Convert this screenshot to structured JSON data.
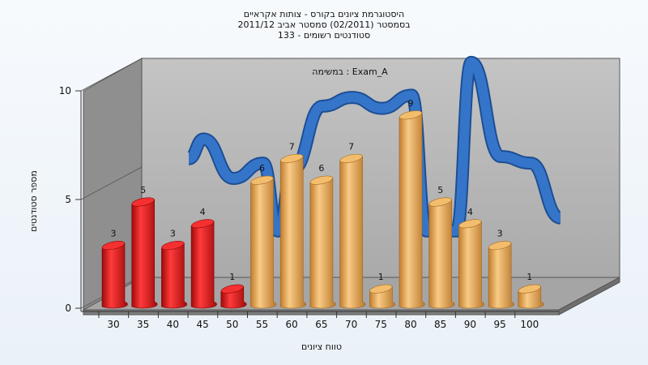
{
  "chart_data": {
    "type": "bar",
    "title": [
      "היסטוגרמת ציונים בקורס - צותות אקראיים",
      "בסמסטר  (02/2011)  סמסטר אביב 2011/12",
      "סטודנטים רשומים - 133"
    ],
    "panel_label": "במשימה : Exam_A",
    "xlabel": "טווח ציונים",
    "ylabel": "מספר סטודנטים",
    "categories": [
      "30",
      "35",
      "40",
      "45",
      "50",
      "55",
      "60",
      "65",
      "70",
      "75",
      "80",
      "85",
      "90",
      "95",
      "100"
    ],
    "values": [
      3,
      5,
      3,
      4,
      1,
      6,
      7,
      6,
      7,
      1,
      9,
      5,
      4,
      3,
      1
    ],
    "bar_groups": [
      "fail",
      "fail",
      "fail",
      "fail",
      "fail",
      "pass",
      "pass",
      "pass",
      "pass",
      "pass",
      "pass",
      "pass",
      "pass",
      "pass",
      "pass"
    ],
    "y_ticks": [
      "0",
      "5",
      "10"
    ],
    "ylim": [
      0,
      10
    ],
    "trend_line": [
      {
        "x": 37.5,
        "y": 4.9
      },
      {
        "x": 40,
        "y": 5.8
      },
      {
        "x": 45,
        "y": 4.0
      },
      {
        "x": 50,
        "y": 4.7
      },
      {
        "x": 52.5,
        "y": 1.6
      },
      {
        "x": 55,
        "y": 4.4
      },
      {
        "x": 60,
        "y": 7.3
      },
      {
        "x": 65,
        "y": 7.7
      },
      {
        "x": 70,
        "y": 7.2
      },
      {
        "x": 75,
        "y": 7.8
      },
      {
        "x": 77.5,
        "y": 1.6
      },
      {
        "x": 82.5,
        "y": 1.6
      },
      {
        "x": 85,
        "y": 9.3
      },
      {
        "x": 90,
        "y": 5.0
      },
      {
        "x": 95,
        "y": 4.7
      },
      {
        "x": 100,
        "y": 2.2
      }
    ],
    "colors": {
      "fail": "#e01818",
      "pass": "#e8a84e",
      "trend": "#3575c9",
      "back_wall": "#b7b7b7",
      "side_wall": "#8f8f8f",
      "floor": "#a9a9a9"
    },
    "grid": false,
    "legend": "none"
  }
}
